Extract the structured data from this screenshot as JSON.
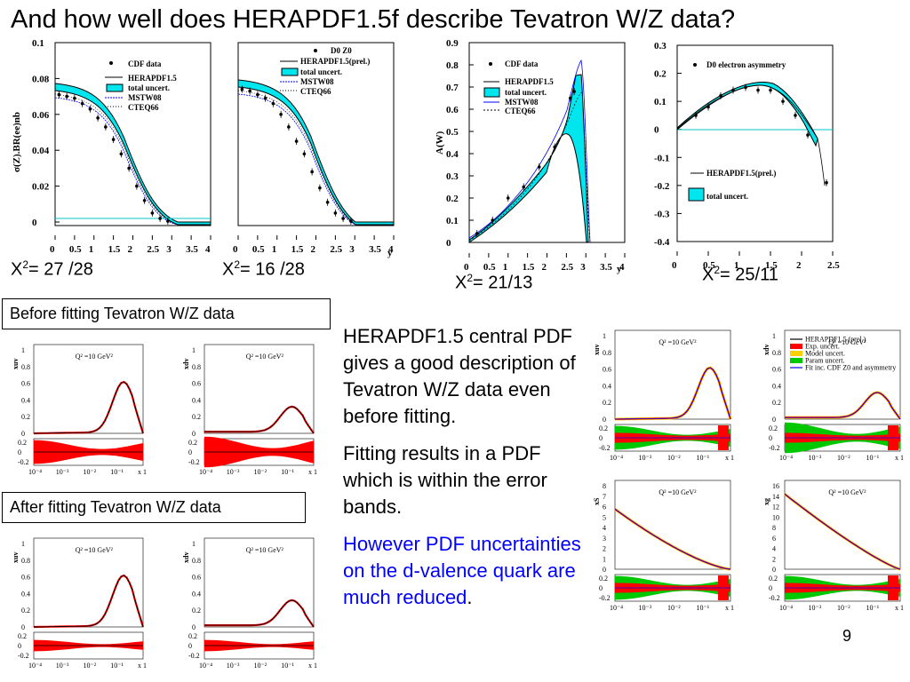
{
  "slide": {
    "title": "And how well does HERAPDF1.5f describe Tevatron W/Z data?",
    "page_number": "9",
    "chi2": [
      {
        "label": "X",
        "sup": "2",
        "value": "= 27 /28"
      },
      {
        "label": "X",
        "sup": "2",
        "value": "= 16 /28"
      },
      {
        "label": "X",
        "sup": "2",
        "value": "= 21/13"
      },
      {
        "label": "X",
        "sup": "2",
        "value": "= 25/11"
      }
    ],
    "before_label": "Before  fitting Tevatron W/Z data",
    "after_label": "After fitting Tevatron W/Z data",
    "desc": {
      "p1": "HERAPDF1.5 central PDF gives a good description of Tevatron W/Z data even before fitting.",
      "p2": "Fitting results in a PDF which is within the error bands.",
      "p3": "However PDF uncertainties on the d-valence quark are much reduced",
      "p3_end": "."
    }
  },
  "colors": {
    "band": "#00e5ee",
    "red": "#ff0000",
    "green": "#00c800",
    "yellow": "#ffff00",
    "blue": "#0000ff"
  },
  "chart_data": [
    {
      "type": "line",
      "ylabel": "σ(Z).BR(ee)nb",
      "xlabel": "",
      "x_ticks": [
        "0",
        "0.5",
        "1",
        "1.5",
        "2",
        "2.5",
        "3",
        "3.5",
        "4"
      ],
      "y_ticks": [
        "0",
        "0.02",
        "0.04",
        "0.06",
        "0.08",
        "0.1"
      ],
      "xlim": [
        0,
        4
      ],
      "ylim": [
        0,
        0.1
      ],
      "legend": [
        "CDF data",
        "HERAPDF1.5",
        "total uncert.",
        "MSTW08",
        "CTEQ66"
      ],
      "series": [
        {
          "name": "CDF data",
          "x": [
            0.1,
            0.3,
            0.5,
            0.7,
            0.9,
            1.1,
            1.3,
            1.5,
            1.7,
            1.9,
            2.1,
            2.3,
            2.5,
            2.7,
            2.9
          ],
          "y": [
            0.071,
            0.07,
            0.069,
            0.066,
            0.063,
            0.058,
            0.053,
            0.046,
            0.038,
            0.03,
            0.02,
            0.012,
            0.005,
            0.002,
            0.0005
          ]
        }
      ]
    },
    {
      "type": "line",
      "ylabel": "",
      "xlabel": "y",
      "x_ticks": [
        "0",
        "0.5",
        "1",
        "1.5",
        "2",
        "2.5",
        "3",
        "3.5",
        "4"
      ],
      "xlim": [
        0,
        4
      ],
      "ylim": [
        0,
        0.1
      ],
      "legend": [
        "D0 Z0",
        "HERAPDF1.5(prel.)",
        "total uncert.",
        "MSTW08",
        "CTEQ66"
      ],
      "series": [
        {
          "name": "D0 Z0",
          "x": [
            0.1,
            0.3,
            0.5,
            0.7,
            0.9,
            1.1,
            1.3,
            1.5,
            1.7,
            1.9,
            2.1,
            2.3,
            2.5,
            2.7,
            2.9
          ],
          "y": [
            0.074,
            0.073,
            0.071,
            0.069,
            0.066,
            0.06,
            0.053,
            0.045,
            0.038,
            0.028,
            0.019,
            0.011,
            0.005,
            0.002,
            0.0005
          ]
        }
      ]
    },
    {
      "type": "line",
      "ylabel": "A(W)",
      "xlabel": "y",
      "x_ticks": [
        "0",
        "0.5",
        "1",
        "1.5",
        "2",
        "2.5",
        "3",
        "3.5",
        "4"
      ],
      "y_ticks": [
        "0",
        "0.1",
        "0.2",
        "0.3",
        "0.4",
        "0.5",
        "0.6",
        "0.7",
        "0.8",
        "0.9"
      ],
      "xlim": [
        0,
        4
      ],
      "ylim": [
        0,
        0.9
      ],
      "legend": [
        "CDF data",
        "HERAPDF1.5",
        "total uncert.",
        "MSTW08",
        "CTEQ66"
      ],
      "series": [
        {
          "name": "CDF data",
          "x": [
            0.2,
            0.6,
            1.0,
            1.4,
            1.8,
            2.2,
            2.6,
            2.7
          ],
          "y": [
            0.04,
            0.1,
            0.2,
            0.25,
            0.34,
            0.43,
            0.65,
            0.68
          ]
        }
      ]
    },
    {
      "type": "line",
      "ylabel": "",
      "xlabel": "",
      "x_ticks": [
        "0",
        "0.5",
        "1",
        "1.5",
        "2",
        "2.5"
      ],
      "y_ticks": [
        "-0.4",
        "-0.3",
        "-0.2",
        "-0.1",
        "0",
        "0.1",
        "0.2",
        "0.3"
      ],
      "xlim": [
        0,
        2.5
      ],
      "ylim": [
        -0.4,
        0.3
      ],
      "legend": [
        "D0 electron asymmetry",
        "HERAPDF1.5(prel.)",
        "total uncert."
      ],
      "series": [
        {
          "name": "D0 electron asymmetry",
          "x": [
            0.3,
            0.5,
            0.7,
            0.9,
            1.1,
            1.3,
            1.5,
            1.7,
            1.9,
            2.1,
            2.4
          ],
          "y": [
            0.05,
            0.08,
            0.12,
            0.14,
            0.15,
            0.14,
            0.14,
            0.1,
            0.05,
            -0.02,
            -0.19
          ]
        }
      ]
    },
    {
      "type": "line",
      "ylabel": "xuv",
      "title": "Q² =10 GeV²",
      "y_ticks": [
        "0",
        "0.2",
        "0.4",
        "0.6",
        "0.8",
        "1"
      ],
      "ratio_ticks": [
        "-0.2",
        "0",
        "0.2"
      ],
      "x_ticks": [
        "10⁻⁴",
        "10⁻³",
        "10⁻²",
        "10⁻¹",
        "x 1"
      ]
    },
    {
      "type": "line",
      "ylabel": "xdv",
      "title": "Q² =10 GeV²",
      "y_ticks": [
        "0",
        "0.2",
        "0.4",
        "0.6",
        "0.8",
        "1"
      ],
      "ratio_ticks": [
        "-0.2",
        "0",
        "0.2"
      ],
      "x_ticks": [
        "10⁻⁴",
        "10⁻³",
        "10⁻²",
        "10⁻¹",
        "x 1"
      ]
    },
    {
      "type": "line",
      "ylabel": "xuv",
      "title": "Q² =10 GeV²",
      "y_ticks": [
        "0",
        "0.2",
        "0.4",
        "0.6",
        "0.8",
        "1"
      ],
      "ratio_ticks": [
        "-0.2",
        "0",
        "0.2"
      ],
      "x_ticks": [
        "10⁻⁴",
        "10⁻³",
        "10⁻²",
        "10⁻¹",
        "x 1"
      ]
    },
    {
      "type": "line",
      "ylabel": "xdv",
      "title": "Q² =10 GeV²",
      "y_ticks": [
        "0",
        "0.2",
        "0.4",
        "0.6",
        "0.8",
        "1"
      ],
      "ratio_ticks": [
        "-0.2",
        "0",
        "0.2"
      ],
      "x_ticks": [
        "10⁻⁴",
        "10⁻³",
        "10⁻²",
        "10⁻¹",
        "x 1"
      ]
    },
    {
      "type": "line",
      "ylabel": "xuv",
      "title": "Q² =10 GeV²",
      "y_ticks": [
        "0",
        "0.2",
        "0.4",
        "0.6",
        "0.8",
        "1"
      ],
      "ratio_ticks": [
        "-0.2",
        "0",
        "0.2"
      ],
      "x_ticks": [
        "10⁻⁴",
        "10⁻³",
        "10⁻²",
        "10⁻¹",
        "x 1"
      ]
    },
    {
      "type": "line",
      "ylabel": "xdv",
      "title": "Q² =10 GeV²",
      "y_ticks": [
        "0",
        "0.2",
        "0.4",
        "0.6",
        "0.8",
        "1"
      ],
      "ratio_ticks": [
        "-0.2",
        "0",
        "0.2"
      ],
      "x_ticks": [
        "10⁻⁴",
        "10⁻³",
        "10⁻²",
        "10⁻¹",
        "x 1"
      ],
      "legend": [
        "HERAPDF1.5 (prel.)",
        "Exp. uncert.",
        "Model uncert.",
        "Param uncert.",
        "Fit inc. CDF Z0 and asymmetry"
      ]
    },
    {
      "type": "line",
      "ylabel": "xS",
      "title": "Q² =10 GeV²",
      "y_ticks": [
        "0",
        "1",
        "2",
        "3",
        "4",
        "5",
        "6",
        "7",
        "8"
      ],
      "ratio_ticks": [
        "-0.2",
        "0",
        "0.2"
      ],
      "x_ticks": [
        "10⁻⁴",
        "10⁻³",
        "10⁻²",
        "10⁻¹",
        "x 1"
      ]
    },
    {
      "type": "line",
      "ylabel": "xg",
      "title": "Q² =10 GeV²",
      "y_ticks": [
        "0",
        "2",
        "4",
        "6",
        "8",
        "10",
        "12",
        "14",
        "16"
      ],
      "ratio_ticks": [
        "-0.2",
        "0",
        "0.2"
      ],
      "x_ticks": [
        "10⁻⁴",
        "10⁻³",
        "10⁻²",
        "10⁻¹",
        "x 1"
      ]
    }
  ]
}
